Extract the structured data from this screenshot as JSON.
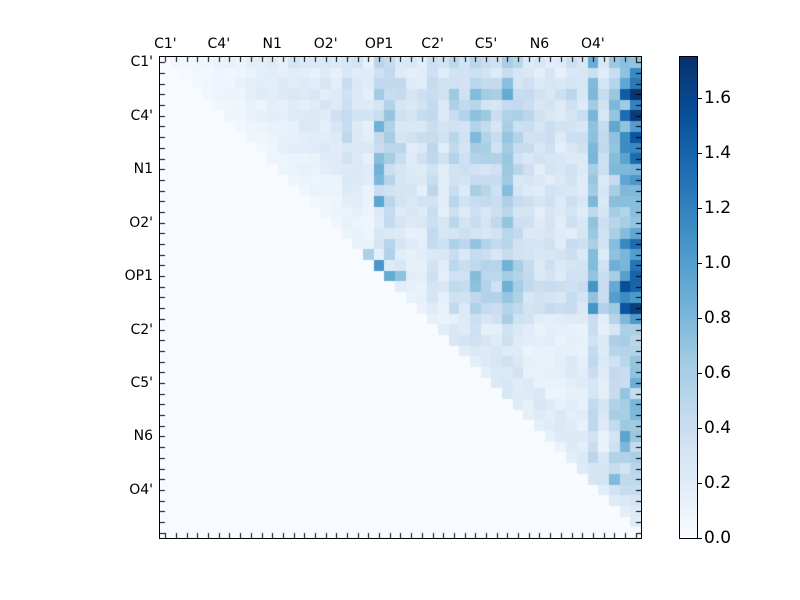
{
  "figure": {
    "background": "#ffffff",
    "kind": "matplotlib matshow heatmap figure, no title"
  },
  "chart_data": {
    "type": "heatmap",
    "title": "",
    "xlabel": "",
    "ylabel": "",
    "n_cells": 45,
    "group_size": 5,
    "structure": "upper-triangular: lower triangle and diagonal are zero (blank)",
    "x_axis": {
      "side": "top",
      "tick_labels": [
        "C1'",
        "C4'",
        "N1",
        "O2'",
        "OP1",
        "C2'",
        "C5'",
        "N6",
        "O4'"
      ],
      "labeled_cell_indices": [
        0,
        5,
        10,
        15,
        20,
        25,
        30,
        35,
        40
      ],
      "minor_ticks": "one tick per cell on all four sides, pointing inward"
    },
    "y_axis": {
      "side": "left",
      "tick_labels": [
        "C1'",
        "C4'",
        "N1",
        "O2'",
        "OP1",
        "C2'",
        "C5'",
        "N6",
        "O4'"
      ],
      "labeled_cell_indices": [
        0,
        5,
        10,
        15,
        20,
        25,
        30,
        35,
        40
      ]
    },
    "colorbar": {
      "side": "right",
      "vmin": 0.0,
      "vmax": 1.75,
      "tick_values": [
        0.0,
        0.2,
        0.4,
        0.6,
        0.8,
        1.0,
        1.2,
        1.4,
        1.6
      ],
      "tick_label_format": "one decimal"
    },
    "colormap": {
      "name": "Blues",
      "stops": [
        "#f7fbff",
        "#deebf7",
        "#c6dbef",
        "#9ecae1",
        "#6baed6",
        "#4292c6",
        "#2171b5",
        "#08519c",
        "#08306b"
      ]
    },
    "matrix_model": {
      "note": "approximate reconstruction of the 45x45 upper-triangular values read from the pixels: value(i,j) = col_weights[j] * row_weights[i] * ramp(j-i) * noise for j>i; hotspots are exact standout cells [row,col,value]",
      "col_weights": [
        0.12,
        0.14,
        0.13,
        0.15,
        0.14,
        0.18,
        0.2,
        0.2,
        0.24,
        0.22,
        0.24,
        0.26,
        0.28,
        0.26,
        0.24,
        0.26,
        0.28,
        0.4,
        0.3,
        0.22,
        0.48,
        0.56,
        0.42,
        0.3,
        0.3,
        0.46,
        0.3,
        0.52,
        0.42,
        0.6,
        0.5,
        0.46,
        0.7,
        0.5,
        0.36,
        0.28,
        0.32,
        0.28,
        0.36,
        0.3,
        0.75,
        0.38,
        0.8,
        1.05,
        1.2
      ],
      "row_weights": [
        0.85,
        0.72,
        0.85,
        1.05,
        0.9,
        1.1,
        0.92,
        1.05,
        0.95,
        0.92,
        0.8,
        0.76,
        0.82,
        0.86,
        0.76,
        0.8,
        0.76,
        0.95,
        0.86,
        0.95,
        1.0,
        1.1,
        0.95,
        1.1,
        0.72,
        0.5,
        0.56,
        0.5,
        0.56,
        0.52,
        0.56,
        0.5,
        0.6,
        0.72,
        0.66,
        0.6,
        0.56,
        0.72,
        0.6,
        0.66,
        0.52,
        0.34,
        0.26,
        0.18,
        0.12
      ],
      "ramp": {
        "base": 0.28,
        "full_at_cells": 9
      },
      "near_diagonal_boost": {
        "from_row": 25,
        "max_distance": 4,
        "amount": 0.12
      },
      "noise": {
        "seed": 13,
        "min": 0.68,
        "max": 1.32
      },
      "hotspots": [
        [
          3,
          43,
          1.45
        ],
        [
          3,
          44,
          1.72
        ],
        [
          5,
          43,
          1.35
        ],
        [
          5,
          44,
          1.68
        ],
        [
          7,
          44,
          1.5
        ],
        [
          9,
          44,
          1.35
        ],
        [
          1,
          44,
          1.15
        ],
        [
          21,
          43,
          1.55
        ],
        [
          21,
          44,
          1.4
        ],
        [
          23,
          43,
          1.5
        ],
        [
          23,
          44,
          1.65
        ],
        [
          22,
          42,
          1.0
        ],
        [
          17,
          44,
          1.35
        ],
        [
          19,
          44,
          1.3
        ],
        [
          6,
          20,
          0.85
        ],
        [
          9,
          20,
          0.75
        ],
        [
          10,
          20,
          0.85
        ],
        [
          11,
          20,
          0.8
        ],
        [
          13,
          20,
          0.95
        ],
        [
          19,
          20,
          1.05
        ],
        [
          20,
          21,
          0.9
        ],
        [
          20,
          22,
          0.72
        ],
        [
          18,
          19,
          0.58
        ],
        [
          17,
          21,
          0.52
        ],
        [
          18,
          21,
          0.55
        ],
        [
          35,
          43,
          0.95
        ],
        [
          36,
          43,
          0.8
        ],
        [
          33,
          43,
          0.6
        ],
        [
          39,
          42,
          0.78
        ],
        [
          37,
          42,
          0.55
        ],
        [
          26,
          43,
          0.6
        ],
        [
          31,
          43,
          0.7
        ],
        [
          0,
          40,
          0.88
        ]
      ]
    }
  }
}
